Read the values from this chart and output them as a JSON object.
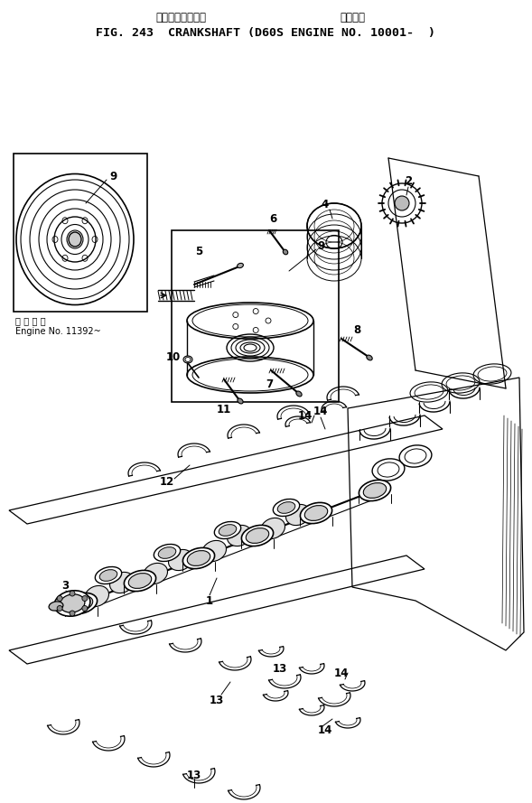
{
  "bg_color": "#ffffff",
  "title_jp": "クランクシャフト        適用号機",
  "title_en": "FIG. 243  CRANKSHAFT (D60S ENGINE NO. 10001-  )",
  "inset_label_jp": "適 用 号 機",
  "inset_label_en": "Engine No. 11392~",
  "figsize": [
    5.89,
    8.89
  ],
  "dpi": 100
}
